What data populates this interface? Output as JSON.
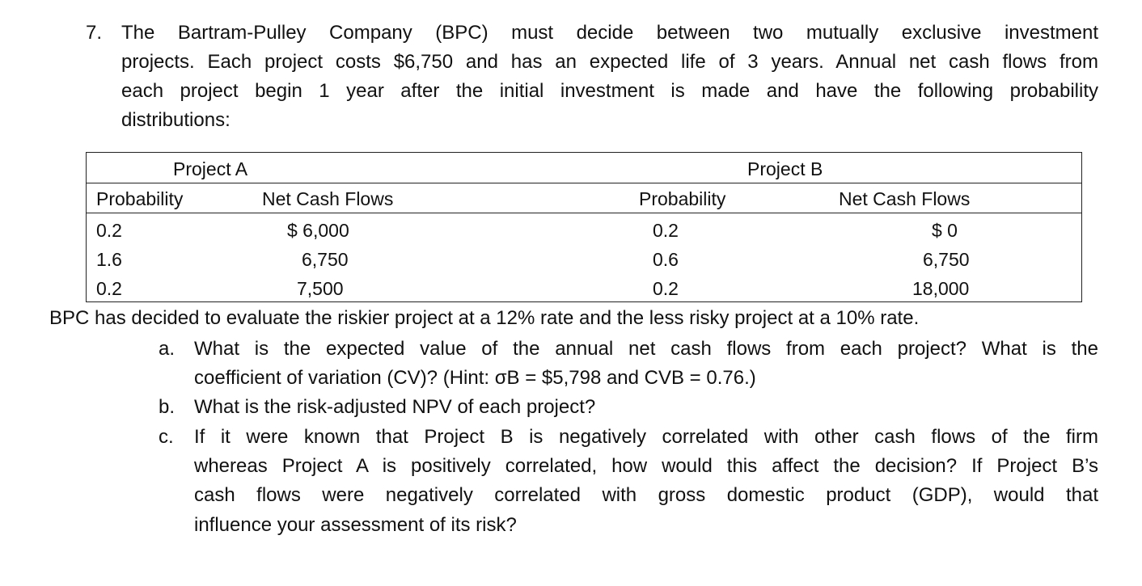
{
  "question": {
    "number": "7.",
    "paragraph_lines": [
      "The Bartram-Pulley Company (BPC) must decide between two mutually exclusive investment",
      "projects. Each project costs $6,750 and has an expected life of 3 years. Annual net cash flows from",
      "each project begin 1 year after the initial investment is made and have the following probability",
      "distributions:"
    ]
  },
  "table": {
    "project_a_title": "Project A",
    "project_b_title": "Project B",
    "headers": [
      "Probability",
      "Net Cash Flows",
      "Probability",
      "Net Cash Flows"
    ],
    "rows": [
      [
        "0.2",
        "$ 6,000",
        "0.2",
        "$ 0"
      ],
      [
        "1.6",
        "6,750",
        "0.6",
        "6,750"
      ],
      [
        "0.2",
        "7,500",
        "0.2",
        "18,000"
      ]
    ]
  },
  "statement": "BPC has decided to evaluate the riskier project at a 12% rate and the less risky project at a 10% rate.",
  "subquestions": [
    {
      "letter": "a.",
      "lines": [
        "What is the expected value of the annual net cash flows from each project? What is the",
        "coefficient of variation (CV)? (Hint: σB = $5,798 and CVB = 0.76.)"
      ]
    },
    {
      "letter": "b.",
      "lines": [
        "What is the risk-adjusted NPV of each project?"
      ]
    },
    {
      "letter": "c.",
      "lines": [
        "If it were known that Project B is negatively correlated with other cash flows of the firm",
        "whereas Project A is positively correlated, how would this affect the decision? If Project B’s",
        "cash flows were negatively correlated with gross domestic product (GDP), would that",
        "influence your assessment of its risk?"
      ]
    }
  ]
}
